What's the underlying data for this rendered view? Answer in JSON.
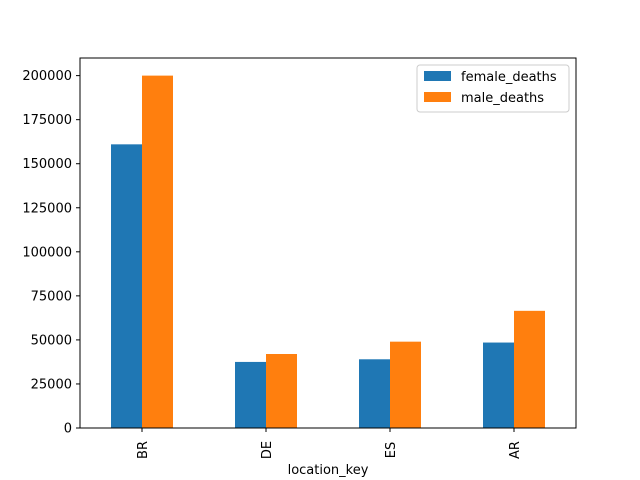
{
  "chart_data": {
    "type": "bar",
    "title": "",
    "xlabel": "location_key",
    "ylabel": "",
    "categories": [
      "BR",
      "DE",
      "ES",
      "AR"
    ],
    "series": [
      {
        "name": "female_deaths",
        "color": "#1f77b4",
        "values": [
          161000,
          37500,
          39000,
          48500
        ]
      },
      {
        "name": "male_deaths",
        "color": "#ff7f0e",
        "values": [
          200000,
          42000,
          49000,
          66500
        ]
      }
    ],
    "ylim": [
      0,
      210000
    ],
    "yticks": [
      0,
      25000,
      50000,
      75000,
      100000,
      125000,
      150000,
      175000,
      200000
    ],
    "legend": "top-right",
    "grid": false
  }
}
